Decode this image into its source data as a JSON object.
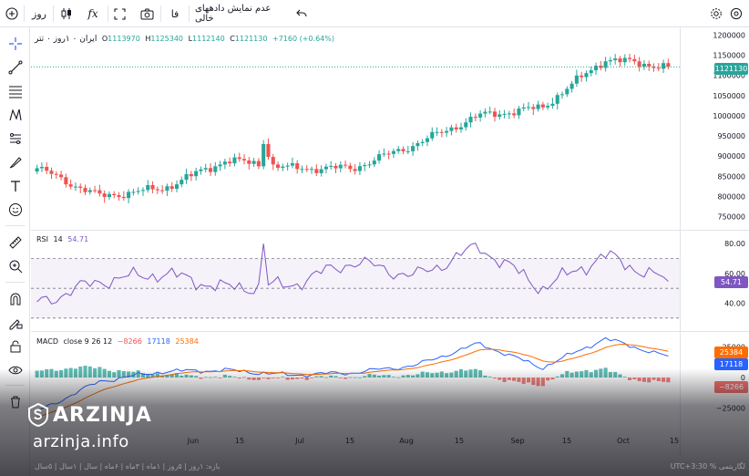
{
  "toolbar": {
    "timeframe": "روز",
    "fx_label": "fx",
    "indicators_label": "فا",
    "hide_empty_label": "عدم نمایش دادههای خالی"
  },
  "legend": {
    "symbol": "ایران ۰ ۱روز ۰ تتر",
    "o_label": "O",
    "o": "1113970",
    "h_label": "H",
    "h": "1125340",
    "l_label": "L",
    "l": "1112140",
    "c_label": "C",
    "c": "1121130",
    "change": "+7160 (+0.64%)",
    "rsi_label": "RSI",
    "rsi_len": "14",
    "rsi_val": "54.71",
    "macd_label": "MACD",
    "macd_params": "close 9 26 12",
    "macd_hist": "−8266",
    "macd_line": "17118",
    "macd_signal": "25384"
  },
  "price_axis": [
    "1200000",
    "1150000",
    "1100000",
    "1050000",
    "1000000",
    "950000",
    "900000",
    "850000",
    "800000",
    "750000"
  ],
  "rsi_axis": [
    "80.00",
    "60.00",
    "40.00"
  ],
  "macd_axis": [
    "25000",
    "0",
    "−25000"
  ],
  "time_axis": [
    "Jun",
    "15",
    "Jul",
    "15",
    "Aug",
    "15",
    "Sep",
    "15",
    "Oct",
    "15"
  ],
  "tags": {
    "price": "1121130",
    "rsi": "54.71",
    "macd_signal": "25384",
    "macd_line": "17118",
    "macd_hist": "−8266"
  },
  "colors": {
    "up": "#26a69a",
    "down": "#ef5350",
    "rsi": "#7e57c2",
    "macd": "#2962ff",
    "signal": "#ff6d00"
  },
  "watermark": {
    "brand": "ARZINJA",
    "url": "arzinja.info"
  },
  "bottombar": {
    "left": "بازه: ۱روز | ۵روز | ۱ماه | ۳ماه | ۶ماه | سال | ۱سال | ۵سال",
    "right": "UTC+3:30  %  لگاریتمی"
  },
  "chart_data": {
    "type": "candlestick",
    "x": [
      "May 27",
      "Jun 1",
      "Jun 15",
      "Jul 1",
      "Jul 15",
      "Aug 1",
      "Aug 15",
      "Sep 1",
      "Sep 15",
      "Oct 1",
      "Oct 15"
    ],
    "close": [
      870000,
      800000,
      820000,
      890000,
      870000,
      870000,
      930000,
      1000000,
      1020000,
      1140000,
      1121130
    ],
    "ylim": [
      740000,
      1210000
    ],
    "rsi": [
      40,
      55,
      60,
      50,
      52,
      68,
      58,
      78,
      50,
      72,
      54.71
    ],
    "macd": [
      -28000,
      -3000,
      5000,
      6000,
      2000,
      4000,
      10000,
      28000,
      8000,
      32000,
      17118
    ]
  }
}
